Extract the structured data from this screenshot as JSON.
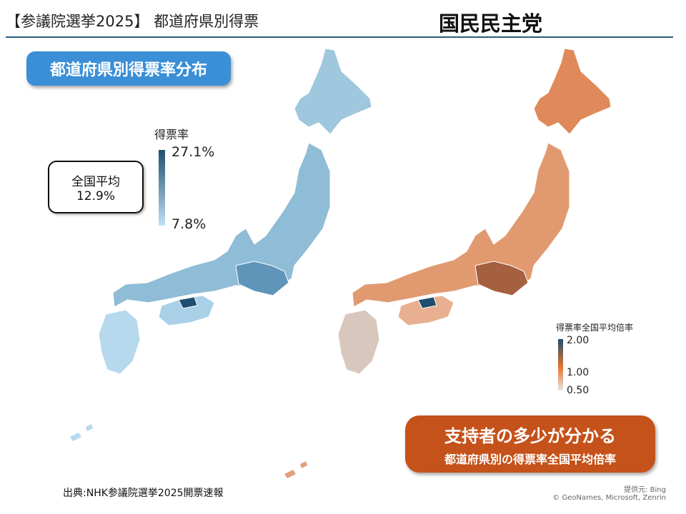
{
  "header": {
    "title": "【参議院選挙2025】 都道府県別得票",
    "party": "国民民主党"
  },
  "left_map": {
    "pill_label": "都道府県別得票率分布",
    "average_label": "全国平均",
    "average_value": "12.9%",
    "legend_title": "得票率",
    "legend_max": "27.1%",
    "legend_min": "7.8%",
    "colors": {
      "low": "#bfe0f5",
      "high": "#1f4e6e"
    }
  },
  "right_map": {
    "legend_title": "得票率全国平均倍率",
    "legend_max": "2.00",
    "legend_mid": "1.00",
    "legend_min": "0.50",
    "callout_main": "支持者の多少が分かる",
    "callout_sub": "都道府県別の得票率全国平均倍率",
    "colors": {
      "low": "#e6e6e6",
      "mid": "#e8742c",
      "high": "#1f4e6e"
    }
  },
  "footer": {
    "source": "出典:NHK参議院選挙2025開票速報",
    "credit_provider": "提供元: Bing",
    "credit_copyright": "© GeoNames, Microsoft, Zenrin"
  }
}
